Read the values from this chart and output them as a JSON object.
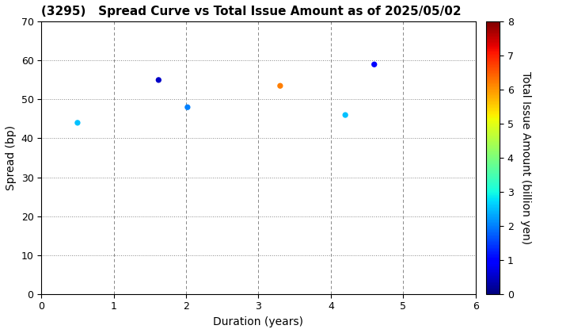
{
  "title": "(3295)   Spread Curve vs Total Issue Amount as of 2025/05/02",
  "xlabel": "Duration (years)",
  "ylabel": "Spread (bp)",
  "colorbar_label": "Total Issue Amount (billion yen)",
  "xlim": [
    0,
    6
  ],
  "ylim": [
    0,
    70
  ],
  "xticks": [
    0,
    1,
    2,
    3,
    4,
    5,
    6
  ],
  "yticks": [
    0,
    10,
    20,
    30,
    40,
    50,
    60,
    70
  ],
  "colorbar_min": 0,
  "colorbar_max": 8,
  "colorbar_ticks": [
    0,
    1,
    2,
    3,
    4,
    5,
    6,
    7,
    8
  ],
  "points": [
    {
      "duration": 0.5,
      "spread": 44.0,
      "amount": 2.5
    },
    {
      "duration": 1.62,
      "spread": 55.0,
      "amount": 0.5
    },
    {
      "duration": 2.02,
      "spread": 48.0,
      "amount": 2.0
    },
    {
      "duration": 3.3,
      "spread": 53.5,
      "amount": 6.2
    },
    {
      "duration": 4.2,
      "spread": 46.0,
      "amount": 2.5
    },
    {
      "duration": 4.6,
      "spread": 59.0,
      "amount": 1.0
    }
  ],
  "marker_size": 18,
  "background_color": "#ffffff",
  "grid_color_h": "#888888",
  "grid_color_v": "#888888",
  "colormap": "jet",
  "title_fontsize": 11,
  "axis_fontsize": 10,
  "tick_fontsize": 9
}
